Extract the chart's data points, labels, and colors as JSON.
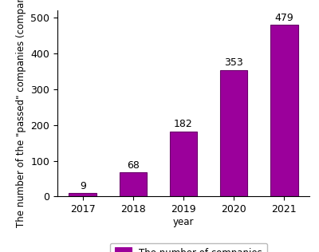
{
  "years": [
    "2017",
    "2018",
    "2019",
    "2020",
    "2021"
  ],
  "values": [
    9,
    68,
    182,
    353,
    479
  ],
  "bar_color": "#9b009b",
  "bar_edgecolor": "#6a006a",
  "ylabel": "The number of the \"passed\" companies (companies)",
  "xlabel": "year",
  "ylim": [
    0,
    520
  ],
  "yticks": [
    0,
    100,
    200,
    300,
    400,
    500
  ],
  "legend_label": "The number of companies",
  "annotation_color": "#000000",
  "annotation_fontsize": 9,
  "label_fontsize": 8.5,
  "tick_fontsize": 9,
  "background_color": "#ffffff"
}
